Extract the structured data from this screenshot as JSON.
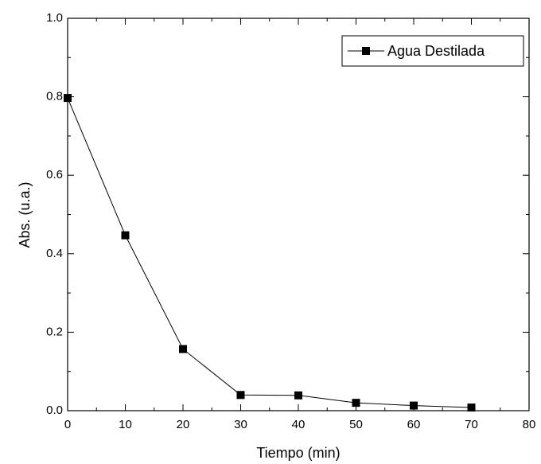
{
  "chart_data": {
    "type": "line",
    "xlabel": "Tiempo (min)",
    "ylabel": "Abs. (u.a.)",
    "x": [
      0,
      10,
      20,
      30,
      40,
      50,
      60,
      70
    ],
    "series": [
      {
        "name": "Agua Destilada",
        "color": "#000000",
        "marker": "square",
        "values": [
          0.797,
          0.447,
          0.157,
          0.04,
          0.039,
          0.02,
          0.013,
          0.008
        ]
      }
    ],
    "xlim": [
      0,
      80
    ],
    "xticks": [
      0,
      10,
      20,
      30,
      40,
      50,
      60,
      70,
      80
    ],
    "ylim": [
      0,
      1.0
    ],
    "yticks": [
      {
        "value": 0,
        "label": "0.0"
      },
      0.2,
      0.4,
      0.6,
      0.8,
      {
        "value": 1.0,
        "label": "1.0"
      }
    ],
    "grid": false,
    "legend": "upper right"
  }
}
